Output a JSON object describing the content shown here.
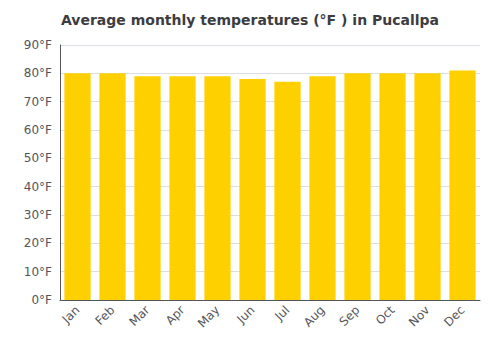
{
  "chart_data": {
    "type": "bar",
    "title": "Average monthly temperatures (°F ) in Pucallpa",
    "categories": [
      "Jan",
      "Feb",
      "Mar",
      "Apr",
      "May",
      "Jun",
      "Jul",
      "Aug",
      "Sep",
      "Oct",
      "Nov",
      "Dec"
    ],
    "values": [
      80,
      80,
      79,
      79,
      79,
      78,
      77,
      79,
      80,
      80,
      80,
      81
    ],
    "color": "#FFD000",
    "ylim": [
      0,
      90
    ],
    "yticks": [
      {
        "value": 0,
        "label": "0°F"
      },
      {
        "value": 10,
        "label": "10°F"
      },
      {
        "value": 20,
        "label": "20°F"
      },
      {
        "value": 30,
        "label": "30°F"
      },
      {
        "value": 40,
        "label": "40°F"
      },
      {
        "value": 50,
        "label": "50°F"
      },
      {
        "value": 60,
        "label": "60°F"
      },
      {
        "value": 70,
        "label": "70°F"
      },
      {
        "value": 80,
        "label": "80°F"
      },
      {
        "value": 90,
        "label": "90°F"
      }
    ],
    "grid": true
  }
}
